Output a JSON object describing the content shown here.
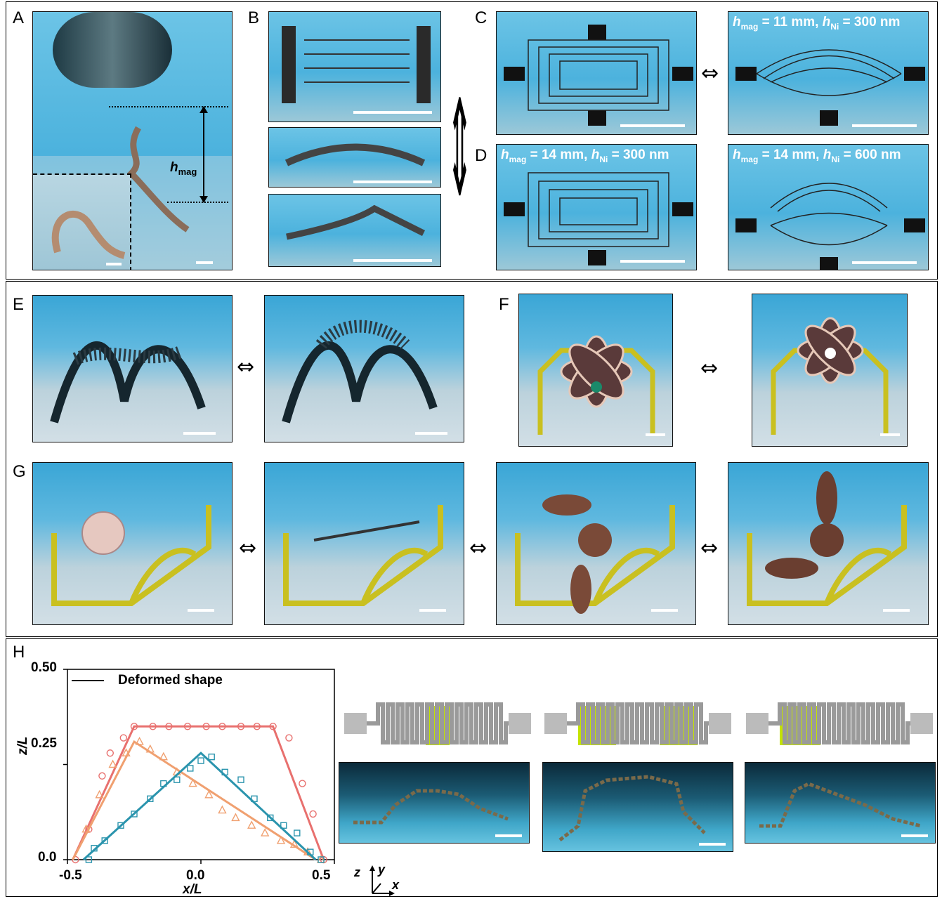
{
  "panels": {
    "A": "A",
    "B": "B",
    "C": "C",
    "D": "D",
    "E": "E",
    "F": "F",
    "G": "G",
    "H": "H"
  },
  "h_mag_label": {
    "base": "h",
    "sub": "mag"
  },
  "overlays": {
    "C_right": {
      "h": "h",
      "hsub": "mag",
      "hval": " = 11 mm, ",
      "n": "h",
      "nsub": "Ni",
      "nval": " = 300 nm"
    },
    "D_left": {
      "h": "h",
      "hsub": "mag",
      "hval": " = 14 mm, ",
      "n": "h",
      "nsub": "Ni",
      "nval": " = 300 nm"
    },
    "D_right": {
      "h": "h",
      "hsub": "mag",
      "hval": " = 14 mm, ",
      "n": "h",
      "nsub": "Ni",
      "nval": " = 600 nm"
    }
  },
  "arrow_glyph": "⇔",
  "arrow_vertical_glyph": "⇕",
  "colors": {
    "red": "#e8706e",
    "orange": "#f0a070",
    "teal": "#2a94ad",
    "highlight": "#c4e300",
    "serpentine": "#9a9a9a"
  },
  "chart_data": {
    "type": "scatter",
    "xlabel": "x/L",
    "ylabel": "z/L",
    "xlim": [
      -0.5,
      0.5
    ],
    "ylim": [
      0.0,
      0.5
    ],
    "xticks": [
      "-0.5",
      "0.0",
      "0.5"
    ],
    "yticks": [
      "0.0",
      "0.25",
      "0.50"
    ],
    "legend": {
      "label": "Deformed shape",
      "position": "top-left"
    },
    "series": [
      {
        "color": "#e8706e",
        "marker": "circle",
        "line": [
          [
            -0.48,
            0.0
          ],
          [
            -0.25,
            0.35
          ],
          [
            0.27,
            0.35
          ],
          [
            0.46,
            0.0
          ]
        ],
        "points": [
          [
            -0.47,
            0.0
          ],
          [
            -0.42,
            0.08
          ],
          [
            -0.37,
            0.22
          ],
          [
            -0.34,
            0.28
          ],
          [
            -0.29,
            0.32
          ],
          [
            -0.25,
            0.35
          ],
          [
            -0.18,
            0.35
          ],
          [
            -0.12,
            0.35
          ],
          [
            -0.05,
            0.35
          ],
          [
            0.02,
            0.35
          ],
          [
            0.08,
            0.35
          ],
          [
            0.15,
            0.35
          ],
          [
            0.21,
            0.35
          ],
          [
            0.27,
            0.35
          ],
          [
            0.33,
            0.32
          ],
          [
            0.38,
            0.2
          ],
          [
            0.42,
            0.12
          ],
          [
            0.46,
            0.0
          ]
        ]
      },
      {
        "color": "#f0a070",
        "marker": "triangle",
        "line": [
          [
            -0.48,
            0.0
          ],
          [
            -0.25,
            0.31
          ],
          [
            0.43,
            0.0
          ]
        ],
        "points": [
          [
            -0.43,
            0.08
          ],
          [
            -0.38,
            0.17
          ],
          [
            -0.33,
            0.25
          ],
          [
            -0.28,
            0.28
          ],
          [
            -0.23,
            0.31
          ],
          [
            -0.19,
            0.29
          ],
          [
            -0.14,
            0.27
          ],
          [
            -0.09,
            0.23
          ],
          [
            -0.03,
            0.2
          ],
          [
            0.03,
            0.17
          ],
          [
            0.08,
            0.13
          ],
          [
            0.13,
            0.11
          ],
          [
            0.19,
            0.09
          ],
          [
            0.24,
            0.07
          ],
          [
            0.3,
            0.05
          ],
          [
            0.35,
            0.04
          ],
          [
            0.4,
            0.02
          ],
          [
            0.45,
            0.0
          ]
        ]
      },
      {
        "color": "#2a94ad",
        "marker": "square",
        "line": [
          [
            -0.44,
            0.0
          ],
          [
            0.0,
            0.28
          ],
          [
            0.43,
            0.0
          ]
        ],
        "points": [
          [
            -0.42,
            0.0
          ],
          [
            -0.4,
            0.03
          ],
          [
            -0.36,
            0.05
          ],
          [
            -0.3,
            0.09
          ],
          [
            -0.25,
            0.12
          ],
          [
            -0.19,
            0.16
          ],
          [
            -0.14,
            0.2
          ],
          [
            -0.09,
            0.21
          ],
          [
            -0.04,
            0.24
          ],
          [
            0.0,
            0.26
          ],
          [
            0.04,
            0.27
          ],
          [
            0.09,
            0.23
          ],
          [
            0.15,
            0.21
          ],
          [
            0.2,
            0.16
          ],
          [
            0.26,
            0.11
          ],
          [
            0.31,
            0.09
          ],
          [
            0.36,
            0.07
          ],
          [
            0.41,
            0.02
          ],
          [
            0.45,
            0.0
          ]
        ]
      }
    ]
  },
  "coord_axes": {
    "z": "z",
    "y": "y",
    "x": "x"
  }
}
